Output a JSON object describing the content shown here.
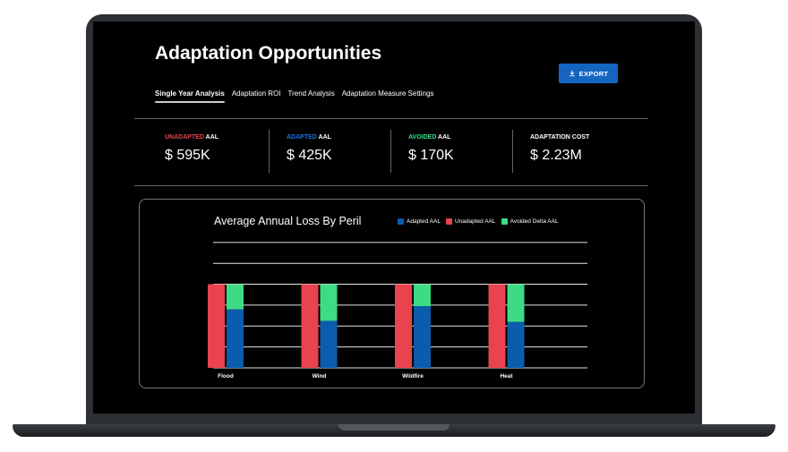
{
  "page_title": "Adaptation Opportunities",
  "export_label": "EXPORT",
  "tabs": [
    {
      "label": "Single Year Analysis",
      "active": true
    },
    {
      "label": "Adaptation ROI",
      "active": false
    },
    {
      "label": "Trend Analysis",
      "active": false
    },
    {
      "label": "Adaptation Measure Settings",
      "active": false
    }
  ],
  "kpis": [
    {
      "prefix": "UNADAPTED",
      "suffix": " AAL",
      "prefix_color": "#e8434f",
      "value": "$ 595K"
    },
    {
      "prefix": "ADAPTED",
      "suffix": " AAL",
      "prefix_color": "#1a73e8",
      "value": "$ 425K"
    },
    {
      "prefix": "AVOIDED",
      "suffix": " AAL",
      "prefix_color": "#3ddc84",
      "value": "$ 170K"
    },
    {
      "prefix": "",
      "suffix": "ADAPTATION COST",
      "prefix_color": "#ffffff",
      "value": "$ 2.23M"
    }
  ],
  "colors": {
    "adapted": "#0b5cad",
    "unadapted": "#e8434f",
    "avoided": "#3ddc84",
    "accent": "#1565c0"
  },
  "chart_data": {
    "type": "bar",
    "title": "Average Annual Loss By Peril",
    "categories": [
      "Flood",
      "Wind",
      "Wildfire",
      "Heat"
    ],
    "series": [
      {
        "name": "Adapted AAL",
        "values": [
          56,
          45,
          59,
          44
        ]
      },
      {
        "name": "Unadapted AAL",
        "values": [
          80,
          80,
          80,
          80
        ]
      },
      {
        "name": "Avoided Delta AAL",
        "values": [
          24,
          35,
          21,
          36
        ]
      }
    ],
    "ylim": [
      0,
      125
    ],
    "grid": true,
    "legend": "top-right",
    "xlabel": "",
    "ylabel": ""
  }
}
